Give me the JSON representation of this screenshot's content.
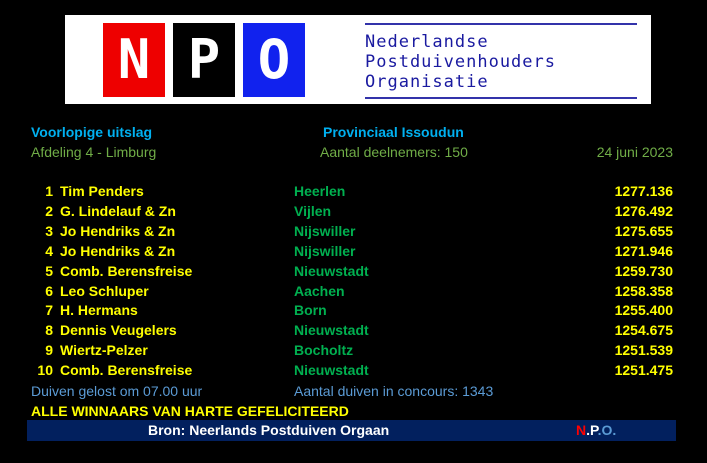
{
  "logo": {
    "letters": [
      "N",
      "P",
      "O"
    ],
    "text": [
      "Nederlandse",
      "Postduivenhouders",
      "Organisatie"
    ],
    "colors": {
      "N": "#ee0000",
      "P": "#000000",
      "O": "#1122ee"
    }
  },
  "header": {
    "status": "Voorlopige uitslag",
    "race": "Provinciaal Issoudun",
    "division": "Afdeling 4 - Limburg",
    "participants": "Aantal deelnemers: 150",
    "date": "24 juni 2023"
  },
  "results": [
    {
      "rank": "1",
      "name": "Tim Penders",
      "place": "Heerlen",
      "score": "1277.136"
    },
    {
      "rank": "2",
      "name": "G. Lindelauf & Zn",
      "place": "Vijlen",
      "score": "1276.492"
    },
    {
      "rank": "3",
      "name": "Jo Hendriks & Zn",
      "place": "Nijswiller",
      "score": "1275.655"
    },
    {
      "rank": "4",
      "name": "Jo Hendriks & Zn",
      "place": "Nijswiller",
      "score": "1271.946"
    },
    {
      "rank": "5",
      "name": "Comb. Berensfreise",
      "place": "Nieuwstadt",
      "score": "1259.730"
    },
    {
      "rank": "6",
      "name": "Leo Schluper",
      "place": "Aachen",
      "score": "1258.358"
    },
    {
      "rank": "7",
      "name": "H. Hermans",
      "place": "Born",
      "score": "1255.400"
    },
    {
      "rank": "8",
      "name": "Dennis Veugelers",
      "place": "Nieuwstadt",
      "score": "1254.675"
    },
    {
      "rank": "9",
      "name": "Wiertz-Pelzer",
      "place": "Bocholtz",
      "score": "1251.539"
    },
    {
      "rank": "10",
      "name": "Comb. Berensfreise",
      "place": "Nieuwstadt",
      "score": "1251.475"
    }
  ],
  "footer": {
    "release": "Duiven gelost om 07.00 uur",
    "pigeons": "Aantal duiven in concours: 1343",
    "congrats": "ALLE WINNAARS VAN HARTE GEFELICITEERD",
    "source": "Bron: Neerlands Postduiven Orgaan",
    "npo": [
      "N",
      ".P",
      ".O."
    ]
  },
  "colors": {
    "title": "#00b0f0",
    "subtitle": "#70ad47",
    "result": "#ffff00",
    "place": "#00b050",
    "footer": "#5b9bd5",
    "bar": "#02205e"
  }
}
